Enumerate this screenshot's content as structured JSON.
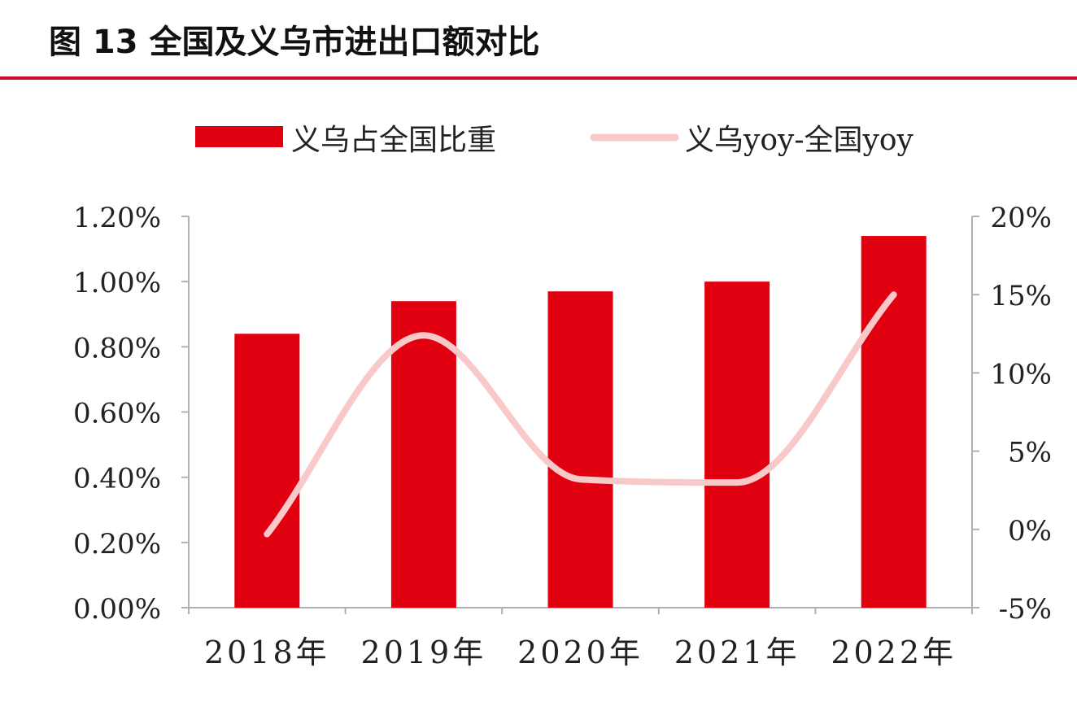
{
  "figure": {
    "title": "图 13 全国及义乌市进出口额对比"
  },
  "colors": {
    "bar": "#e0000f",
    "line": "#f9c9c9",
    "axis": "#b0b0b0",
    "rule": "#c8102e",
    "text": "#222222"
  },
  "chart_data": {
    "type": "bar",
    "categories": [
      "2018年",
      "2019年",
      "2020年",
      "2021年",
      "2022年"
    ],
    "series": [
      {
        "name": "义乌占全国比重",
        "type": "bar",
        "axis": "left",
        "values": [
          0.84,
          0.94,
          0.97,
          1.0,
          1.14
        ],
        "unit": "%"
      },
      {
        "name": "义乌yoy-全国yoy",
        "type": "line",
        "smooth": true,
        "axis": "right",
        "values": [
          -0.3,
          12.4,
          3.2,
          3.0,
          15.0
        ],
        "unit": "%"
      }
    ],
    "left_axis": {
      "ylim": [
        0,
        1.2
      ],
      "ticks": [
        0,
        0.2,
        0.4,
        0.6,
        0.8,
        1.0,
        1.2
      ],
      "tick_labels": [
        "0.00%",
        "0.20%",
        "0.40%",
        "0.60%",
        "0.80%",
        "1.00%",
        "1.20%"
      ]
    },
    "right_axis": {
      "ylim": [
        -5,
        20
      ],
      "ticks": [
        -5,
        0,
        5,
        10,
        15,
        20
      ],
      "tick_labels": [
        "-5%",
        "0%",
        "5%",
        "10%",
        "15%",
        "20%"
      ]
    },
    "legend": {
      "position": "top"
    },
    "grid": false
  }
}
